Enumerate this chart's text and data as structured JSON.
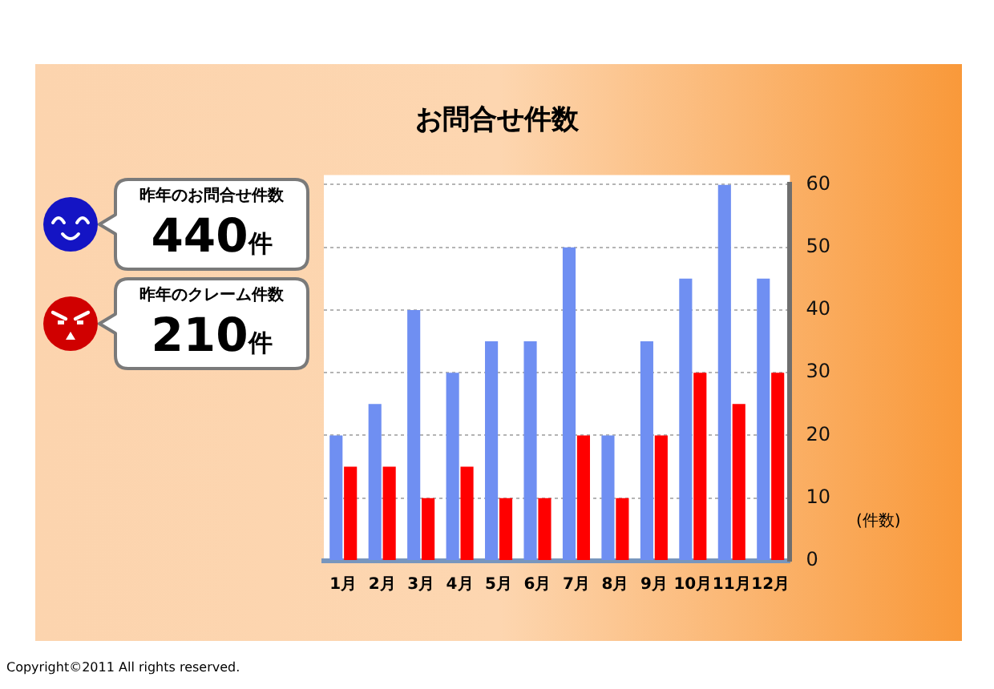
{
  "chart_data": {
    "type": "bar",
    "title": "お問合せ件数",
    "ylabel": "(件数)",
    "categories": [
      "1月",
      "2月",
      "3月",
      "4月",
      "5月",
      "6月",
      "7月",
      "8月",
      "9月",
      "10月",
      "11月",
      "12月"
    ],
    "series": [
      {
        "color": "#6f8ff2",
        "values": [
          20,
          25,
          40,
          30,
          35,
          35,
          50,
          20,
          35,
          45,
          60,
          45
        ]
      },
      {
        "color": "#ff0000",
        "values": [
          15,
          15,
          10,
          15,
          10,
          10,
          20,
          10,
          20,
          30,
          25,
          30
        ]
      }
    ],
    "ylim": [
      0,
      60
    ],
    "yticks": [
      0,
      10,
      20,
      30,
      40,
      50,
      60
    ],
    "grid": "y",
    "annotations": [
      "昨年のお問合せ件数",
      "440件",
      "昨年のクレーム件数",
      "210件",
      "Copyright©2011 All rights reserved."
    ]
  }
}
